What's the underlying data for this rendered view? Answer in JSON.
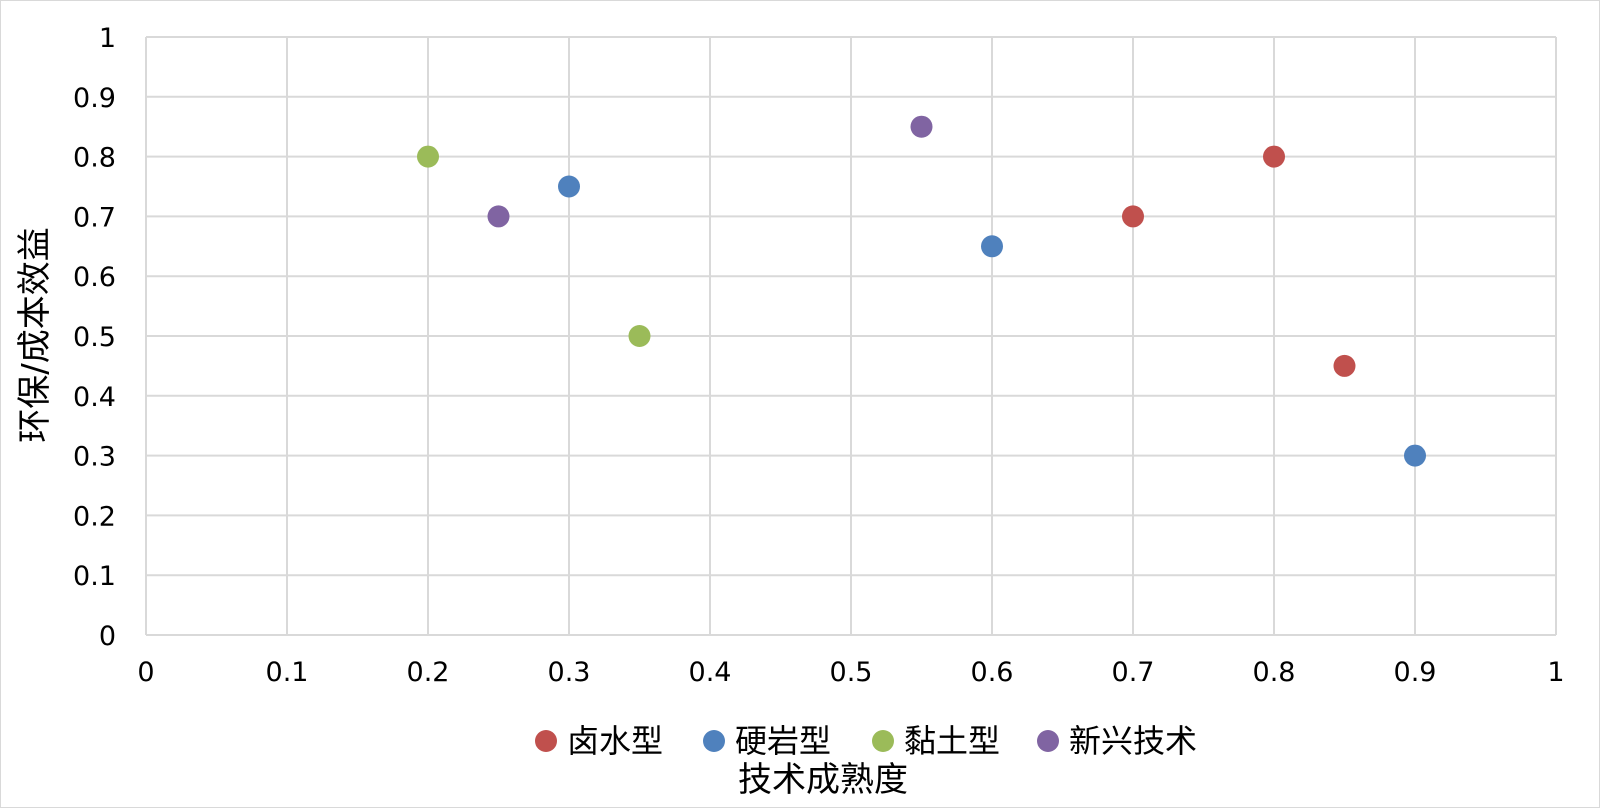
{
  "chart_data": {
    "type": "scatter",
    "title": "",
    "xlabel": "技术成熟度",
    "ylabel": "环保/成本效益",
    "xlim": [
      0,
      1
    ],
    "ylim": [
      0,
      1
    ],
    "x_ticks": [
      "0",
      "0.1",
      "0.2",
      "0.3",
      "0.4",
      "0.5",
      "0.6",
      "0.7",
      "0.8",
      "0.9",
      "1"
    ],
    "y_ticks": [
      "0",
      "0.1",
      "0.2",
      "0.3",
      "0.4",
      "0.5",
      "0.6",
      "0.7",
      "0.8",
      "0.9",
      "1"
    ],
    "grid": true,
    "legend_position": "bottom",
    "series": [
      {
        "name": "卤水型",
        "color": "#c0504d",
        "points": [
          {
            "x": 0.7,
            "y": 0.7
          },
          {
            "x": 0.8,
            "y": 0.8
          },
          {
            "x": 0.85,
            "y": 0.45
          }
        ]
      },
      {
        "name": "硬岩型",
        "color": "#4f81bd",
        "points": [
          {
            "x": 0.3,
            "y": 0.75
          },
          {
            "x": 0.6,
            "y": 0.65
          },
          {
            "x": 0.9,
            "y": 0.3
          }
        ]
      },
      {
        "name": "黏土型",
        "color": "#9bbb59",
        "points": [
          {
            "x": 0.2,
            "y": 0.8
          },
          {
            "x": 0.35,
            "y": 0.5
          }
        ]
      },
      {
        "name": "新兴技术",
        "color": "#8064a2",
        "points": [
          {
            "x": 0.25,
            "y": 0.7
          },
          {
            "x": 0.55,
            "y": 0.85
          }
        ]
      }
    ]
  }
}
